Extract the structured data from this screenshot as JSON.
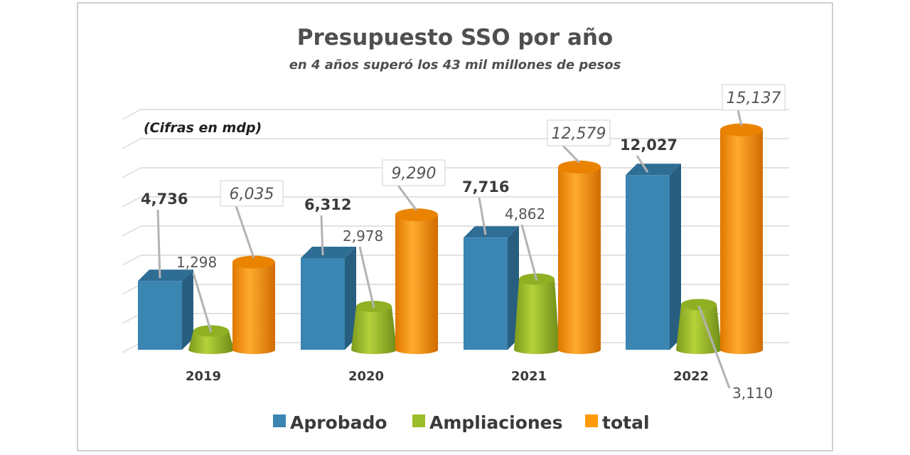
{
  "chart_data": {
    "type": "bar",
    "title": "Presupuesto SSO por año",
    "subtitle": "en 4 años superó los 43 mil millones de pesos",
    "note": "(Cifras en mdp)",
    "categories": [
      "2019",
      "2020",
      "2021",
      "2022"
    ],
    "series": [
      {
        "name": "Aprobado",
        "color": "#3b85b3",
        "values": [
          4736,
          6312,
          7716,
          12027
        ],
        "labels": [
          "4,736",
          "6,312",
          "7,716",
          "12,027"
        ]
      },
      {
        "name": "Ampliaciones",
        "color": "#9cbd2a",
        "values": [
          1298,
          2978,
          4862,
          3110
        ],
        "labels": [
          "1,298",
          "2,978",
          "4,862",
          "3,110"
        ]
      },
      {
        "name": "total",
        "color": "#ff9a0a",
        "values": [
          6035,
          9290,
          12579,
          15137
        ],
        "labels": [
          "6,035",
          "9,290",
          "12,579",
          "15,137"
        ]
      }
    ],
    "ylim": [
      0,
      16000
    ],
    "grid": true,
    "legend_position": "bottom"
  }
}
